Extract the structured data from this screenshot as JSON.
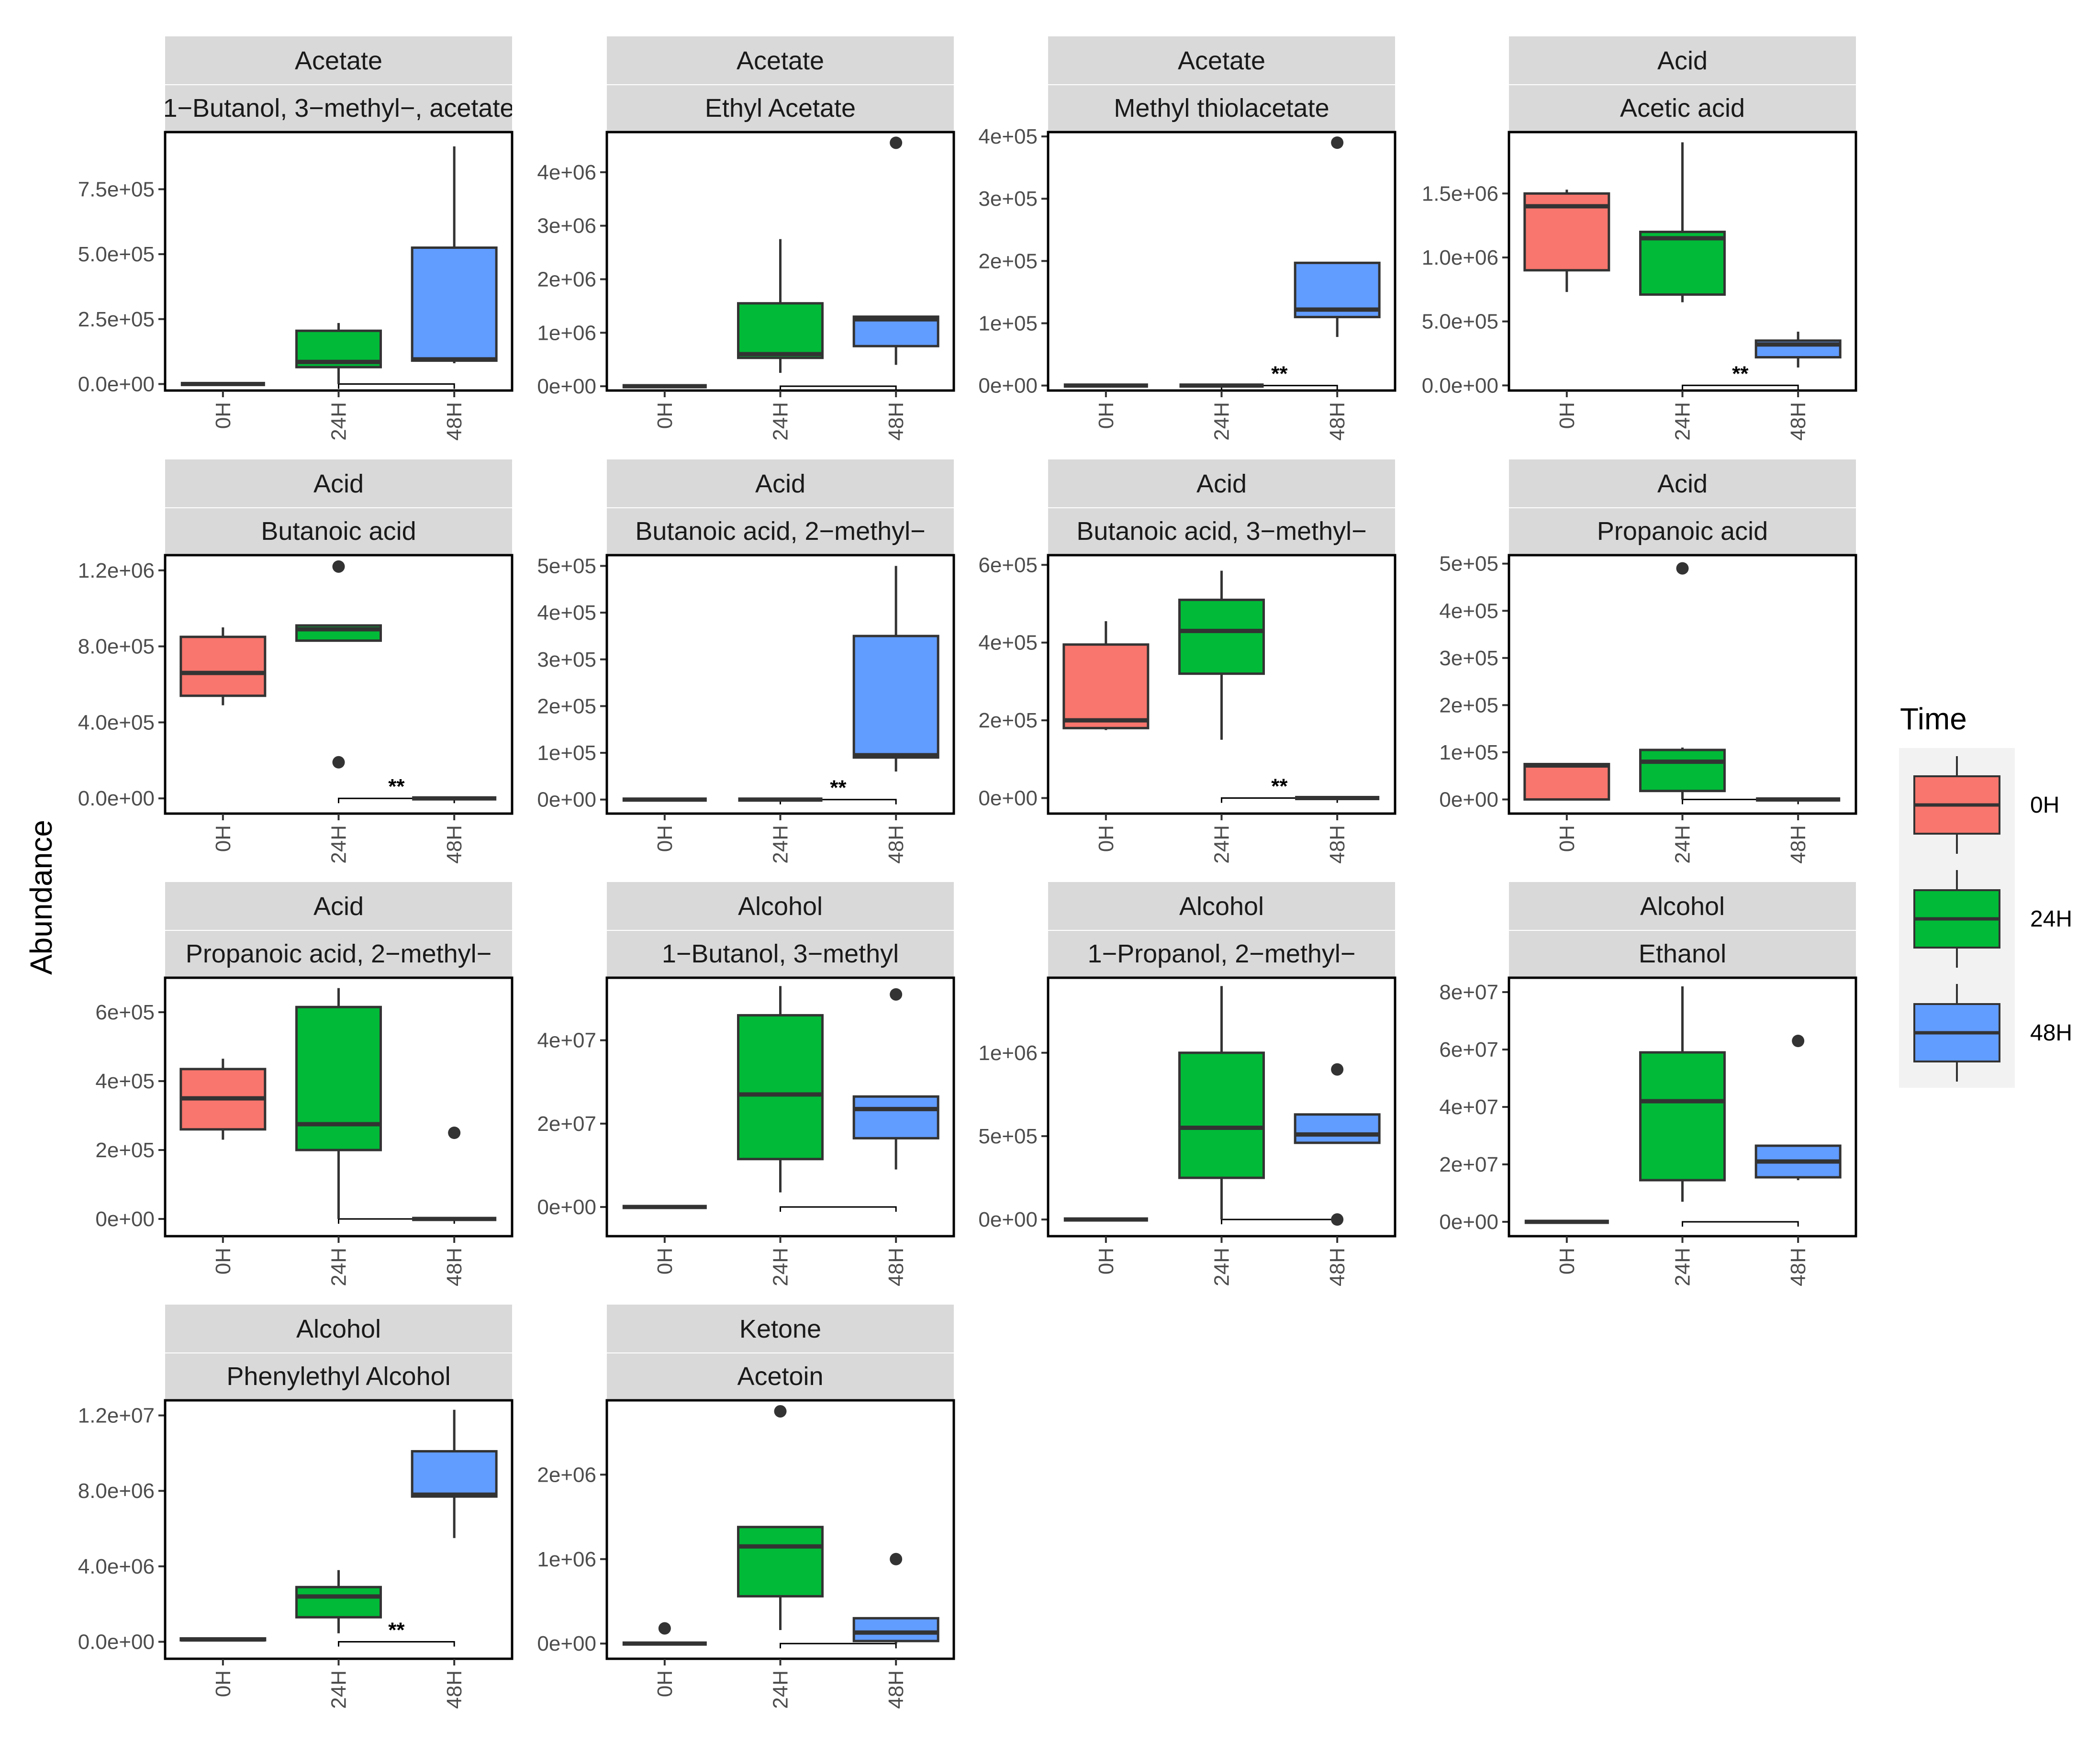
{
  "y_axis_label": "Abundance",
  "legend": {
    "title": "Time",
    "items": [
      {
        "label": "0H",
        "color": "#F8766D"
      },
      {
        "label": "24H",
        "color": "#00BA38"
      },
      {
        "label": "48H",
        "color": "#619CFF"
      }
    ]
  },
  "chart_data": [
    {
      "type": "boxplot",
      "category": "Acetate",
      "compound": "1−Butanol, 3−methyl−, acetate",
      "ylim": [
        -25000,
        970000
      ],
      "yticks": [
        0,
        250000,
        500000,
        750000
      ],
      "ytick_labels": [
        "0.0e+00",
        "2.5e+05",
        "5.0e+05",
        "7.5e+05"
      ],
      "categories": [
        "0H",
        "24H",
        "48H"
      ],
      "boxes": [
        {
          "group": "0H",
          "min": 0,
          "q1": 0,
          "median": 0,
          "q3": 0,
          "max": 0,
          "outliers": []
        },
        {
          "group": "24H",
          "min": 0,
          "q1": 65000,
          "median": 85000,
          "q3": 205000,
          "max": 235000,
          "outliers": []
        },
        {
          "group": "48H",
          "min": 80000,
          "q1": 90000,
          "median": 95000,
          "q3": 525000,
          "max": 915000,
          "outliers": []
        }
      ],
      "significance": {
        "from": "24H",
        "to": "48H",
        "label": ""
      }
    },
    {
      "type": "boxplot",
      "category": "Acetate",
      "compound": "Ethyl Acetate",
      "ylim": [
        -80000,
        4750000
      ],
      "yticks": [
        0,
        1000000,
        2000000,
        3000000,
        4000000
      ],
      "ytick_labels": [
        "0e+00",
        "1e+06",
        "2e+06",
        "3e+06",
        "4e+06"
      ],
      "categories": [
        "0H",
        "24H",
        "48H"
      ],
      "boxes": [
        {
          "group": "0H",
          "min": 0,
          "q1": 0,
          "median": 0,
          "q3": 0,
          "max": 0,
          "outliers": []
        },
        {
          "group": "24H",
          "min": 250000,
          "q1": 530000,
          "median": 600000,
          "q3": 1550000,
          "max": 2750000,
          "outliers": []
        },
        {
          "group": "48H",
          "min": 400000,
          "q1": 750000,
          "median": 1250000,
          "q3": 1300000,
          "max": 1320000,
          "outliers": [
            4550000
          ]
        }
      ],
      "significance": {
        "from": "24H",
        "to": "48H",
        "label": ""
      }
    },
    {
      "type": "boxplot",
      "category": "Acetate",
      "compound": "Methyl thiolacetate",
      "ylim": [
        -8000,
        407000
      ],
      "yticks": [
        0,
        100000,
        200000,
        300000,
        400000
      ],
      "ytick_labels": [
        "0e+00",
        "1e+05",
        "2e+05",
        "3e+05",
        "4e+05"
      ],
      "categories": [
        "0H",
        "24H",
        "48H"
      ],
      "boxes": [
        {
          "group": "0H",
          "min": 0,
          "q1": 0,
          "median": 0,
          "q3": 0,
          "max": 0,
          "outliers": []
        },
        {
          "group": "24H",
          "min": 0,
          "q1": 0,
          "median": 0,
          "q3": 0,
          "max": 0,
          "outliers": []
        },
        {
          "group": "48H",
          "min": 78000,
          "q1": 110000,
          "median": 122000,
          "q3": 197000,
          "max": 197000,
          "outliers": [
            390000
          ]
        }
      ],
      "significance": {
        "from": "24H",
        "to": "48H",
        "label": "**"
      }
    },
    {
      "type": "boxplot",
      "category": "Acid",
      "compound": "Acetic acid",
      "ylim": [
        -40000,
        1980000
      ],
      "yticks": [
        0,
        500000,
        1000000,
        1500000
      ],
      "ytick_labels": [
        "0.0e+00",
        "5.0e+05",
        "1.0e+06",
        "1.5e+06"
      ],
      "categories": [
        "0H",
        "24H",
        "48H"
      ],
      "boxes": [
        {
          "group": "0H",
          "min": 730000,
          "q1": 900000,
          "median": 1400000,
          "q3": 1500000,
          "max": 1530000,
          "outliers": []
        },
        {
          "group": "24H",
          "min": 650000,
          "q1": 710000,
          "median": 1150000,
          "q3": 1200000,
          "max": 1900000,
          "outliers": []
        },
        {
          "group": "48H",
          "min": 140000,
          "q1": 220000,
          "median": 320000,
          "q3": 350000,
          "max": 420000,
          "outliers": []
        }
      ],
      "significance": {
        "from": "24H",
        "to": "48H",
        "label": "**"
      }
    },
    {
      "type": "boxplot",
      "category": "Acid",
      "compound": "Butanoic acid",
      "ylim": [
        -80000,
        1280000
      ],
      "yticks": [
        0,
        400000,
        800000,
        1200000
      ],
      "ytick_labels": [
        "0.0e+00",
        "4.0e+05",
        "8.0e+05",
        "1.2e+06"
      ],
      "categories": [
        "0H",
        "24H",
        "48H"
      ],
      "boxes": [
        {
          "group": "0H",
          "min": 490000,
          "q1": 540000,
          "median": 660000,
          "q3": 850000,
          "max": 900000,
          "outliers": []
        },
        {
          "group": "24H",
          "min": 830000,
          "q1": 830000,
          "median": 890000,
          "q3": 910000,
          "max": 910000,
          "outliers": [
            1220000,
            190000
          ]
        },
        {
          "group": "48H",
          "min": 0,
          "q1": 0,
          "median": 0,
          "q3": 0,
          "max": 0,
          "outliers": []
        }
      ],
      "significance": {
        "from": "24H",
        "to": "48H",
        "label": "**"
      }
    },
    {
      "type": "boxplot",
      "category": "Acid",
      "compound": "Butanoic acid, 2−methyl−",
      "ylim": [
        -30000,
        523000
      ],
      "yticks": [
        0,
        100000,
        200000,
        300000,
        400000,
        500000
      ],
      "ytick_labels": [
        "0e+00",
        "1e+05",
        "2e+05",
        "3e+05",
        "4e+05",
        "5e+05"
      ],
      "categories": [
        "0H",
        "24H",
        "48H"
      ],
      "boxes": [
        {
          "group": "0H",
          "min": 0,
          "q1": 0,
          "median": 0,
          "q3": 0,
          "max": 0,
          "outliers": []
        },
        {
          "group": "24H",
          "min": 0,
          "q1": 0,
          "median": 0,
          "q3": 0,
          "max": 0,
          "outliers": []
        },
        {
          "group": "48H",
          "min": 60000,
          "q1": 90000,
          "median": 95000,
          "q3": 350000,
          "max": 500000,
          "outliers": []
        }
      ],
      "significance": {
        "from": "24H",
        "to": "48H",
        "label": "**"
      }
    },
    {
      "type": "boxplot",
      "category": "Acid",
      "compound": "Butanoic acid, 3−methyl−",
      "ylim": [
        -40000,
        625000
      ],
      "yticks": [
        0,
        200000,
        400000,
        600000
      ],
      "ytick_labels": [
        "0e+00",
        "2e+05",
        "4e+05",
        "6e+05"
      ],
      "categories": [
        "0H",
        "24H",
        "48H"
      ],
      "boxes": [
        {
          "group": "0H",
          "min": 175000,
          "q1": 180000,
          "median": 200000,
          "q3": 395000,
          "max": 455000,
          "outliers": []
        },
        {
          "group": "24H",
          "min": 150000,
          "q1": 320000,
          "median": 430000,
          "q3": 510000,
          "max": 585000,
          "outliers": []
        },
        {
          "group": "48H",
          "min": 0,
          "q1": 0,
          "median": 0,
          "q3": 0,
          "max": 0,
          "outliers": []
        }
      ],
      "significance": {
        "from": "24H",
        "to": "48H",
        "label": "**"
      }
    },
    {
      "type": "boxplot",
      "category": "Acid",
      "compound": "Propanoic acid",
      "ylim": [
        -30000,
        518000
      ],
      "yticks": [
        0,
        100000,
        200000,
        300000,
        400000,
        500000
      ],
      "ytick_labels": [
        "0e+00",
        "1e+05",
        "2e+05",
        "3e+05",
        "4e+05",
        "5e+05"
      ],
      "categories": [
        "0H",
        "24H",
        "48H"
      ],
      "boxes": [
        {
          "group": "0H",
          "min": 0,
          "q1": 0,
          "median": 72000,
          "q3": 75000,
          "max": 75000,
          "outliers": []
        },
        {
          "group": "24H",
          "min": 0,
          "q1": 18000,
          "median": 80000,
          "q3": 105000,
          "max": 110000,
          "outliers": [
            490000
          ]
        },
        {
          "group": "48H",
          "min": 0,
          "q1": 0,
          "median": 0,
          "q3": 0,
          "max": 0,
          "outliers": []
        }
      ],
      "significance": {
        "from": "24H",
        "to": "48H",
        "label": ""
      }
    },
    {
      "type": "boxplot",
      "category": "Acid",
      "compound": "Propanoic acid, 2−methyl−",
      "ylim": [
        -50000,
        700000
      ],
      "yticks": [
        0,
        200000,
        400000,
        600000
      ],
      "ytick_labels": [
        "0e+00",
        "2e+05",
        "4e+05",
        "6e+05"
      ],
      "categories": [
        "0H",
        "24H",
        "48H"
      ],
      "boxes": [
        {
          "group": "0H",
          "min": 230000,
          "q1": 260000,
          "median": 350000,
          "q3": 435000,
          "max": 465000,
          "outliers": []
        },
        {
          "group": "24H",
          "min": 0,
          "q1": 200000,
          "median": 275000,
          "q3": 615000,
          "max": 670000,
          "outliers": []
        },
        {
          "group": "48H",
          "min": 0,
          "q1": 0,
          "median": 0,
          "q3": 0,
          "max": 0,
          "outliers": [
            250000
          ]
        }
      ],
      "significance": {
        "from": "24H",
        "to": "48H",
        "label": ""
      }
    },
    {
      "type": "boxplot",
      "category": "Alcohol",
      "compound": "1−Butanol, 3−methyl",
      "ylim": [
        -7000000,
        55000000
      ],
      "yticks": [
        0,
        20000000,
        40000000
      ],
      "ytick_labels": [
        "0e+00",
        "2e+07",
        "4e+07"
      ],
      "categories": [
        "0H",
        "24H",
        "48H"
      ],
      "boxes": [
        {
          "group": "0H",
          "min": 0,
          "q1": 0,
          "median": 0,
          "q3": 0,
          "max": 0,
          "outliers": []
        },
        {
          "group": "24H",
          "min": 3500000,
          "q1": 11500000,
          "median": 27000000,
          "q3": 46000000,
          "max": 53000000,
          "outliers": []
        },
        {
          "group": "48H",
          "min": 9000000,
          "q1": 16500000,
          "median": 23500000,
          "q3": 26500000,
          "max": 26500000,
          "outliers": [
            51000000
          ]
        }
      ],
      "significance": {
        "from": "24H",
        "to": "48H",
        "label": ""
      }
    },
    {
      "type": "boxplot",
      "category": "Alcohol",
      "compound": "1−Propanol, 2−methyl−",
      "ylim": [
        -100000,
        1450000
      ],
      "yticks": [
        0,
        500000,
        1000000
      ],
      "ytick_labels": [
        "0e+00",
        "5e+05",
        "1e+06"
      ],
      "categories": [
        "0H",
        "24H",
        "48H"
      ],
      "boxes": [
        {
          "group": "0H",
          "min": 0,
          "q1": 0,
          "median": 0,
          "q3": 0,
          "max": 0,
          "outliers": []
        },
        {
          "group": "24H",
          "min": 0,
          "q1": 250000,
          "median": 550000,
          "q3": 1000000,
          "max": 1400000,
          "outliers": []
        },
        {
          "group": "48H",
          "min": 460000,
          "q1": 460000,
          "median": 510000,
          "q3": 630000,
          "max": 630000,
          "outliers": [
            900000,
            0
          ]
        }
      ],
      "significance": {
        "from": "24H",
        "to": "48H",
        "label": ""
      }
    },
    {
      "type": "boxplot",
      "category": "Alcohol",
      "compound": "Ethanol",
      "ylim": [
        -5000000,
        85000000
      ],
      "yticks": [
        0,
        20000000,
        40000000,
        60000000,
        80000000
      ],
      "ytick_labels": [
        "0e+00",
        "2e+07",
        "4e+07",
        "6e+07",
        "8e+07"
      ],
      "categories": [
        "0H",
        "24H",
        "48H"
      ],
      "boxes": [
        {
          "group": "0H",
          "min": 0,
          "q1": 0,
          "median": 0,
          "q3": 0,
          "max": 0,
          "outliers": []
        },
        {
          "group": "24H",
          "min": 7000000,
          "q1": 14500000,
          "median": 42000000,
          "q3": 59000000,
          "max": 82000000,
          "outliers": []
        },
        {
          "group": "48H",
          "min": 14500000,
          "q1": 15500000,
          "median": 21000000,
          "q3": 26500000,
          "max": 26500000,
          "outliers": [
            63000000
          ]
        }
      ],
      "significance": {
        "from": "24H",
        "to": "48H",
        "label": ""
      }
    },
    {
      "type": "boxplot",
      "category": "Alcohol",
      "compound": "Phenylethyl Alcohol",
      "ylim": [
        -900000,
        12800000
      ],
      "yticks": [
        0,
        4000000,
        8000000,
        12000000
      ],
      "ytick_labels": [
        "0.0e+00",
        "4.0e+06",
        "8.0e+06",
        "1.2e+07"
      ],
      "categories": [
        "0H",
        "24H",
        "48H"
      ],
      "boxes": [
        {
          "group": "0H",
          "min": 50000,
          "q1": 80000,
          "median": 120000,
          "q3": 180000,
          "max": 200000,
          "outliers": []
        },
        {
          "group": "24H",
          "min": 450000,
          "q1": 1300000,
          "median": 2400000,
          "q3": 2900000,
          "max": 3800000,
          "outliers": []
        },
        {
          "group": "48H",
          "min": 5500000,
          "q1": 7700000,
          "median": 7800000,
          "q3": 10100000,
          "max": 12300000,
          "outliers": []
        }
      ],
      "significance": {
        "from": "24H",
        "to": "48H",
        "label": "**"
      }
    },
    {
      "type": "boxplot",
      "category": "Ketone",
      "compound": "Acetoin",
      "ylim": [
        -180000,
        2880000
      ],
      "yticks": [
        0,
        1000000,
        2000000
      ],
      "ytick_labels": [
        "0e+00",
        "1e+06",
        "2e+06"
      ],
      "categories": [
        "0H",
        "24H",
        "48H"
      ],
      "boxes": [
        {
          "group": "0H",
          "min": 0,
          "q1": 0,
          "median": 0,
          "q3": 0,
          "max": 0,
          "outliers": [
            180000
          ]
        },
        {
          "group": "24H",
          "min": 160000,
          "q1": 560000,
          "median": 1150000,
          "q3": 1380000,
          "max": 1380000,
          "outliers": [
            2750000
          ]
        },
        {
          "group": "48H",
          "min": 0,
          "q1": 30000,
          "median": 130000,
          "q3": 300000,
          "max": 300000,
          "outliers": [
            1000000
          ]
        }
      ],
      "significance": {
        "from": "24H",
        "to": "48H",
        "label": ""
      }
    }
  ]
}
